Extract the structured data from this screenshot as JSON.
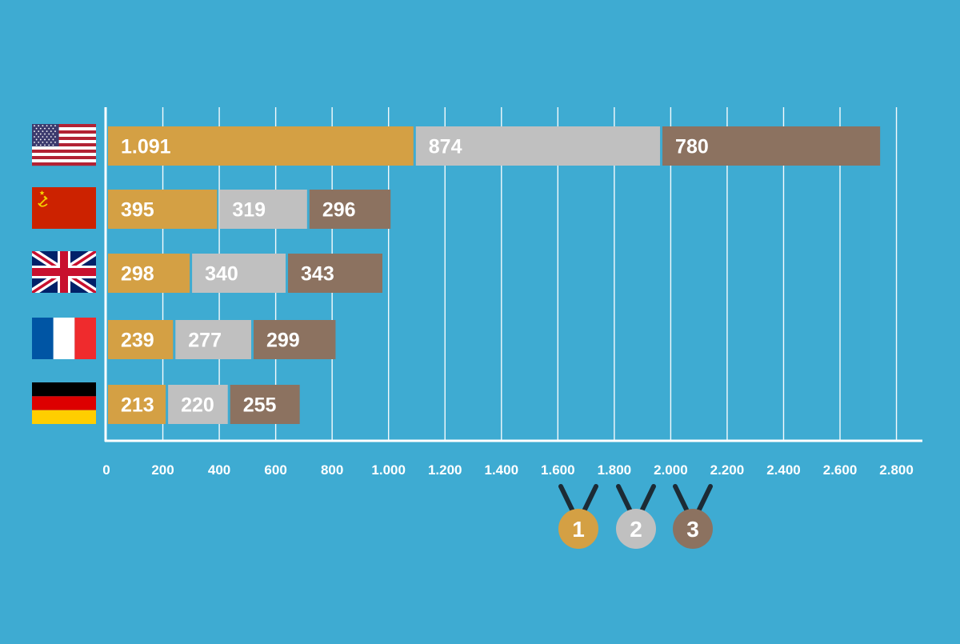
{
  "chart_data": {
    "type": "bar",
    "orientation": "horizontal",
    "stacked": true,
    "categories": [
      "USA",
      "USSR",
      "United Kingdom",
      "France",
      "Germany"
    ],
    "category_icons": [
      "usa-flag-icon",
      "ussr-flag-icon",
      "uk-flag-icon",
      "france-flag-icon",
      "germany-flag-icon"
    ],
    "series": [
      {
        "legend_label": "1",
        "color": "#d4a044",
        "values": [
          1091,
          395,
          298,
          239,
          213
        ],
        "labels": [
          "1.091",
          "395",
          "298",
          "239",
          "213"
        ]
      },
      {
        "legend_label": "2",
        "color": "#c0c0c0",
        "values": [
          874,
          319,
          340,
          277,
          220
        ],
        "labels": [
          "874",
          "319",
          "340",
          "277",
          "220"
        ]
      },
      {
        "legend_label": "3",
        "color": "#8c7260",
        "values": [
          780,
          296,
          343,
          299,
          255
        ],
        "labels": [
          "780",
          "296",
          "343",
          "299",
          "255"
        ]
      }
    ],
    "xlim": [
      0,
      2800
    ],
    "x_ticks": [
      0,
      200,
      400,
      600,
      800,
      1000,
      1200,
      1400,
      1600,
      1800,
      2000,
      2200,
      2400,
      2600,
      2800
    ],
    "x_tick_labels": [
      "0",
      "200",
      "400",
      "600",
      "800",
      "1.000",
      "1.200",
      "1.400",
      "1.600",
      "1.800",
      "2.000",
      "2.200",
      "2.400",
      "2.600",
      "2.800"
    ],
    "grid": true,
    "legend_position": "bottom-right",
    "legend_icons": [
      "gold-medal-icon",
      "silver-medal-icon",
      "bronze-medal-icon"
    ],
    "colors": {
      "background": "#3eabd2",
      "axis": "#ffffff",
      "text": "#ffffff"
    }
  }
}
